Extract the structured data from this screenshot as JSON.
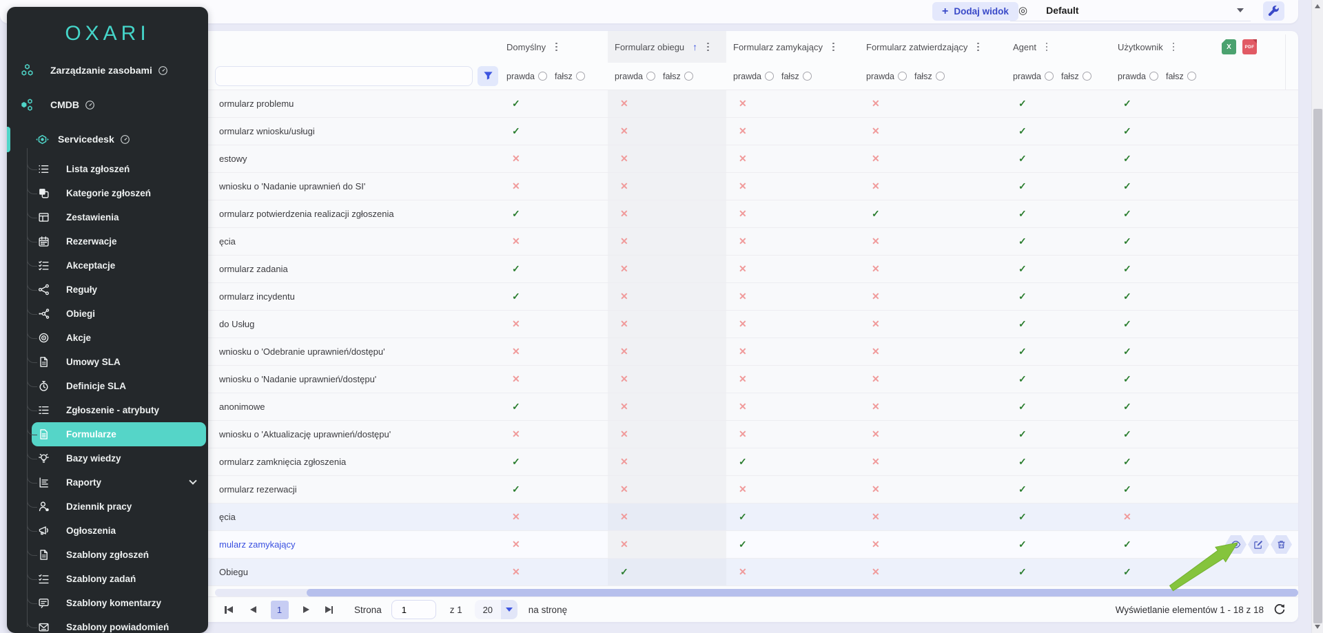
{
  "brand": {
    "logo_text": "OXARI",
    "accent_color": "#4fd5c8"
  },
  "toolbar": {
    "add_view_label": "Dodaj widok",
    "view_selector_value": "Default"
  },
  "sidebar": {
    "modules": [
      {
        "label": "Zarządzanie zasobami",
        "icon": "assets-icon",
        "active": false
      },
      {
        "label": "CMDB",
        "icon": "cmdb-icon",
        "active": false
      },
      {
        "label": "Servicedesk",
        "icon": "servicedesk-icon",
        "active": true
      }
    ],
    "items": [
      {
        "label": "Lista zgłoszeń",
        "icon": "list-icon"
      },
      {
        "label": "Kategorie zgłoszeń",
        "icon": "categories-icon"
      },
      {
        "label": "Zestawienia",
        "icon": "grid-icon"
      },
      {
        "label": "Rezerwacje",
        "icon": "calendar-icon"
      },
      {
        "label": "Akceptacje",
        "icon": "checklist-icon"
      },
      {
        "label": "Reguły",
        "icon": "rules-icon"
      },
      {
        "label": "Obiegi",
        "icon": "workflow-icon"
      },
      {
        "label": "Akcje",
        "icon": "target-icon"
      },
      {
        "label": "Umowy SLA",
        "icon": "document-icon"
      },
      {
        "label": "Definicje SLA",
        "icon": "stopwatch-icon"
      },
      {
        "label": "Zgłoszenie - atrybuty",
        "icon": "attributes-icon"
      },
      {
        "label": "Formularze",
        "icon": "form-icon",
        "active": true
      },
      {
        "label": "Bazy wiedzy",
        "icon": "bulb-icon"
      },
      {
        "label": "Raporty",
        "icon": "report-icon",
        "chevron": true
      },
      {
        "label": "Dziennik pracy",
        "icon": "person-icon"
      },
      {
        "label": "Ogłoszenia",
        "icon": "announcement-icon"
      },
      {
        "label": "Szablony zgłoszeń",
        "icon": "document-icon"
      },
      {
        "label": "Szablony zadań",
        "icon": "tasks-icon"
      },
      {
        "label": "Szablony komentarzy",
        "icon": "comment-icon"
      },
      {
        "label": "Szablony powiadomień",
        "icon": "mail-icon"
      }
    ]
  },
  "table": {
    "filter_true_label": "prawda",
    "filter_false_label": "fałsz",
    "columns": [
      {
        "label": "Domyślny",
        "sorted": false
      },
      {
        "label": "Formularz obiegu",
        "sorted": true,
        "sort_direction": "asc"
      },
      {
        "label": "Formularz zamykający",
        "sorted": false
      },
      {
        "label": "Formularz zatwierdzający",
        "sorted": false
      },
      {
        "label": "Agent",
        "sorted": false
      },
      {
        "label": "Użytkownik",
        "sorted": false
      }
    ],
    "rows": [
      {
        "name": "ormularz problemu",
        "values": [
          true,
          false,
          false,
          false,
          true,
          true
        ]
      },
      {
        "name": "ormularz wniosku/usługi",
        "values": [
          true,
          false,
          false,
          false,
          true,
          true
        ]
      },
      {
        "name": "estowy",
        "values": [
          false,
          false,
          false,
          false,
          true,
          true
        ]
      },
      {
        "name": "wniosku o 'Nadanie uprawnień do SI'",
        "values": [
          false,
          false,
          false,
          false,
          true,
          true
        ]
      },
      {
        "name": "ormularz potwierdzenia realizacji zgłoszenia",
        "values": [
          true,
          false,
          false,
          true,
          true,
          true
        ]
      },
      {
        "name": "ęcia",
        "values": [
          false,
          false,
          false,
          false,
          true,
          true
        ]
      },
      {
        "name": "ormularz zadania",
        "values": [
          true,
          false,
          false,
          false,
          true,
          true
        ]
      },
      {
        "name": "ormularz incydentu",
        "values": [
          true,
          false,
          false,
          false,
          true,
          true
        ]
      },
      {
        "name": "do Usług",
        "values": [
          false,
          false,
          false,
          false,
          true,
          true
        ]
      },
      {
        "name": "wniosku o 'Odebranie uprawnień/dostępu'",
        "values": [
          false,
          false,
          false,
          false,
          true,
          true
        ]
      },
      {
        "name": "wniosku o 'Nadanie uprawnień/dostępu'",
        "values": [
          false,
          false,
          false,
          false,
          true,
          true
        ]
      },
      {
        "name": "anonimowe",
        "values": [
          true,
          false,
          false,
          false,
          true,
          true
        ]
      },
      {
        "name": "wniosku o 'Aktualizację uprawnień/dostępu'",
        "values": [
          false,
          false,
          false,
          false,
          true,
          true
        ]
      },
      {
        "name": "ormularz zamknięcia zgłoszenia",
        "values": [
          true,
          false,
          true,
          false,
          true,
          true
        ]
      },
      {
        "name": "ormularz rezerwacji",
        "values": [
          true,
          false,
          false,
          false,
          true,
          true
        ]
      },
      {
        "name": "ęcia",
        "values": [
          false,
          false,
          true,
          false,
          true,
          false
        ],
        "tint": true
      },
      {
        "name": "mularz zamykający",
        "values": [
          false,
          false,
          true,
          false,
          true,
          true
        ],
        "link": true,
        "hover": true,
        "actions": true
      },
      {
        "name": "Obiegu",
        "values": [
          false,
          true,
          false,
          false,
          true,
          true
        ],
        "tint": true
      }
    ]
  },
  "export": {
    "excel_label": "X",
    "pdf_label": "PDF"
  },
  "pagination": {
    "page_label": "Strona",
    "current_page": "1",
    "page_input_value": "1",
    "of_label": "z 1",
    "page_size_value": "20",
    "per_page_label": "na stronę",
    "summary": "Wyświetlanie elementów 1 - 18 z 18"
  },
  "status_colors": {
    "true": "#2a7d2e",
    "false": "#f09a9a"
  }
}
